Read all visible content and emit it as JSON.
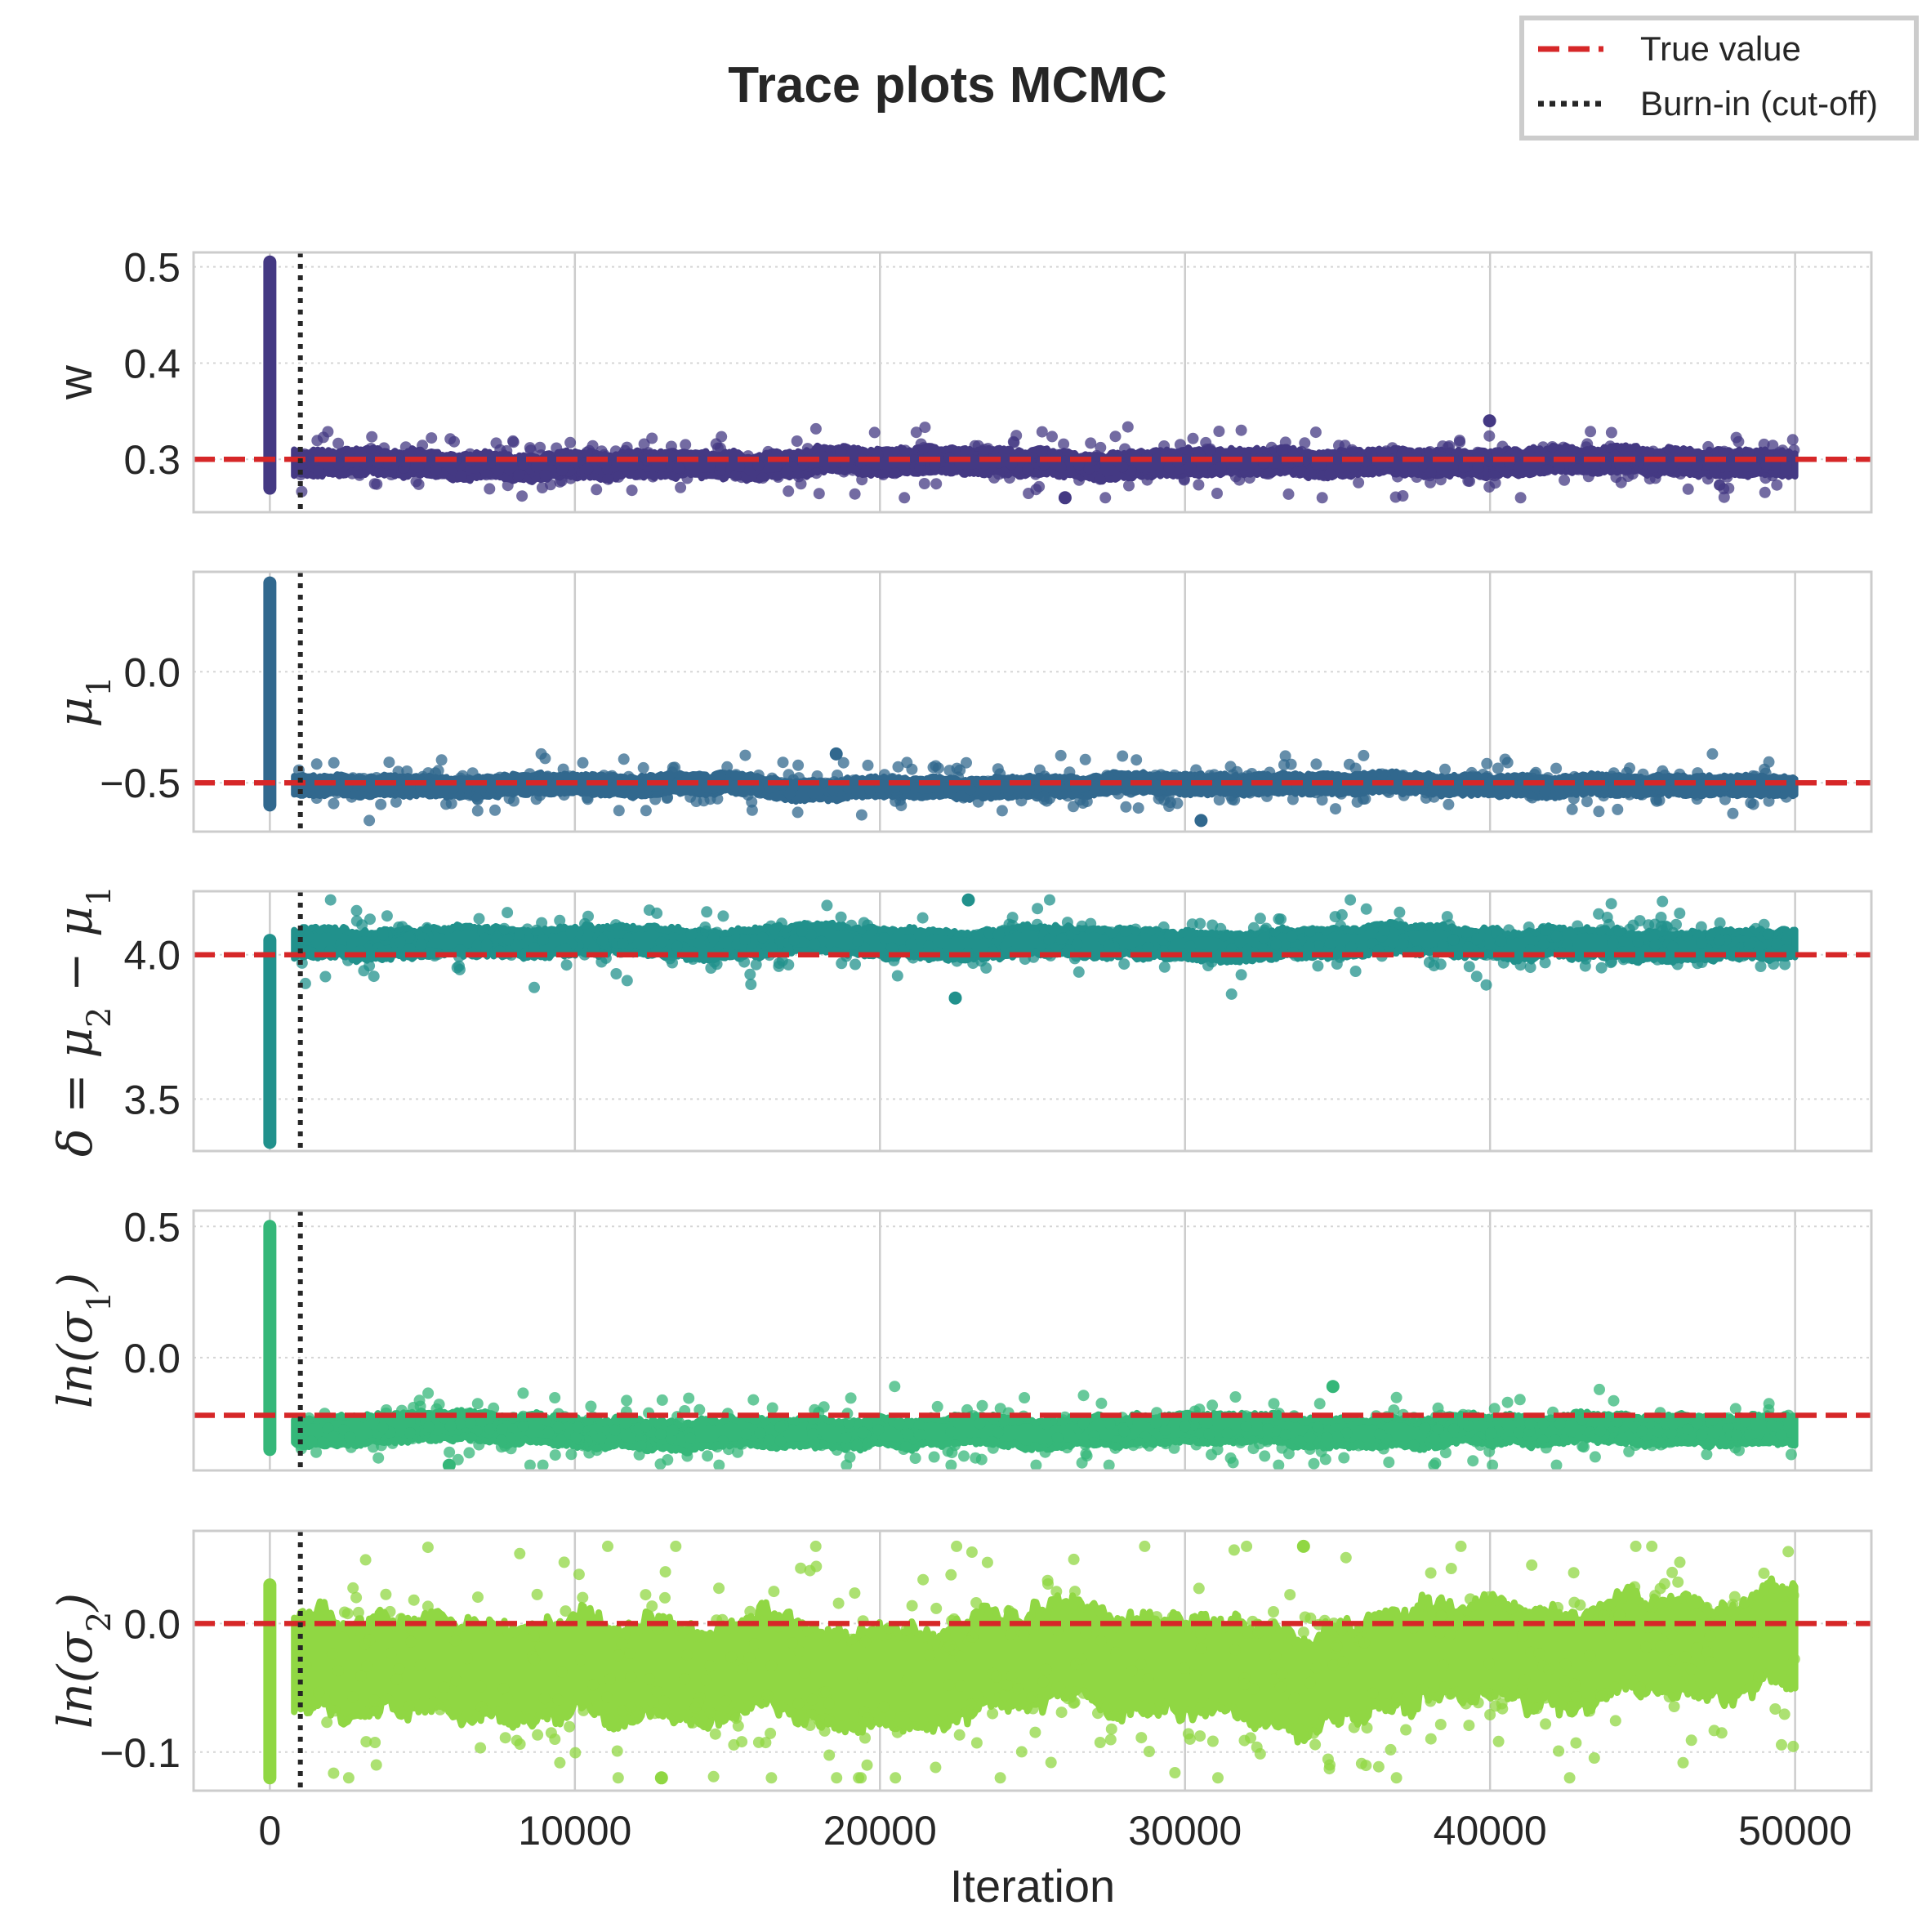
{
  "chart_data": {
    "title": "Trace plots MCMC",
    "type": "line",
    "xlabel": "Iteration",
    "xlim": [
      -2500,
      52500
    ],
    "x_ticks": [
      0,
      10000,
      20000,
      30000,
      40000,
      50000
    ],
    "x_tick_labels": [
      "0",
      "10000",
      "20000",
      "30000",
      "40000",
      "50000"
    ],
    "burn_in": 1000,
    "grid": true,
    "legend": {
      "placement": "top-right",
      "entries": [
        {
          "label": "True value",
          "style": "dashed",
          "color": "#d62728"
        },
        {
          "label": "Burn-in (cut-off)",
          "style": "dotted",
          "color": "#262626"
        }
      ]
    },
    "panels": [
      {
        "ylabel_parts": [
          [
            "w",
            ""
          ]
        ],
        "ylabel_style": "plain",
        "ylim": [
          0.245,
          0.515
        ],
        "yticks": [
          0.3,
          0.4,
          0.5
        ],
        "ytick_labels": [
          "0.3",
          "0.4",
          "0.5"
        ],
        "true_value": 0.3,
        "color": "#443983",
        "start_range": [
          0.27,
          0.505
        ],
        "stationary": {
          "mean": 0.297,
          "band_half_width": 0.012,
          "min": 0.26,
          "max": 0.34
        }
      },
      {
        "ylabel_parts": [
          [
            "μ",
            ""
          ],
          [
            "1",
            "sub"
          ]
        ],
        "ylabel_style": "math",
        "ylim": [
          -0.72,
          0.45
        ],
        "yticks": [
          -0.5,
          0.0
        ],
        "ytick_labels": [
          "−0.5",
          "0.0"
        ],
        "true_value": -0.5,
        "color": "#31688e",
        "start_range": [
          -0.6,
          0.4
        ],
        "stationary": {
          "mean": -0.51,
          "band_half_width": 0.04,
          "min": -0.67,
          "max": -0.37
        }
      },
      {
        "ylabel_parts": [
          [
            "δ = μ",
            ""
          ],
          [
            "2",
            "sub"
          ],
          [
            " − μ",
            ""
          ],
          [
            "1",
            "sub"
          ]
        ],
        "ylabel_style": "math",
        "ylim": [
          3.32,
          4.22
        ],
        "yticks": [
          3.5,
          4.0
        ],
        "ytick_labels": [
          "3.5",
          "4.0"
        ],
        "true_value": 4.0,
        "color": "#21918c",
        "start_range": [
          3.35,
          4.05
        ],
        "stationary": {
          "mean": 4.04,
          "band_half_width": 0.045,
          "min": 3.85,
          "max": 4.19
        }
      },
      {
        "ylabel_parts": [
          [
            "ln(σ",
            ""
          ],
          [
            "1",
            "sub"
          ],
          [
            ")",
            ""
          ]
        ],
        "ylabel_style": "math",
        "ylim": [
          -0.43,
          0.56
        ],
        "yticks": [
          0.0,
          0.5
        ],
        "ytick_labels": [
          "0.0",
          "0.5"
        ],
        "true_value": -0.22,
        "color": "#35b779",
        "start_range": [
          -0.35,
          0.5
        ],
        "stationary": {
          "mean": -0.28,
          "band_half_width": 0.05,
          "min": -0.41,
          "max": -0.11
        }
      },
      {
        "ylabel_parts": [
          [
            "ln(σ",
            ""
          ],
          [
            "2",
            "sub"
          ],
          [
            ")",
            ""
          ]
        ],
        "ylabel_style": "math",
        "ylim": [
          -0.13,
          0.072
        ],
        "yticks": [
          -0.1,
          0.0
        ],
        "ytick_labels": [
          "−0.1",
          "0.0"
        ],
        "true_value": 0.0,
        "color": "#90d743",
        "start_range": [
          -0.12,
          0.03
        ],
        "stationary": {
          "mean": -0.03,
          "band_half_width": 0.035,
          "min": -0.12,
          "max": 0.06
        }
      }
    ]
  }
}
